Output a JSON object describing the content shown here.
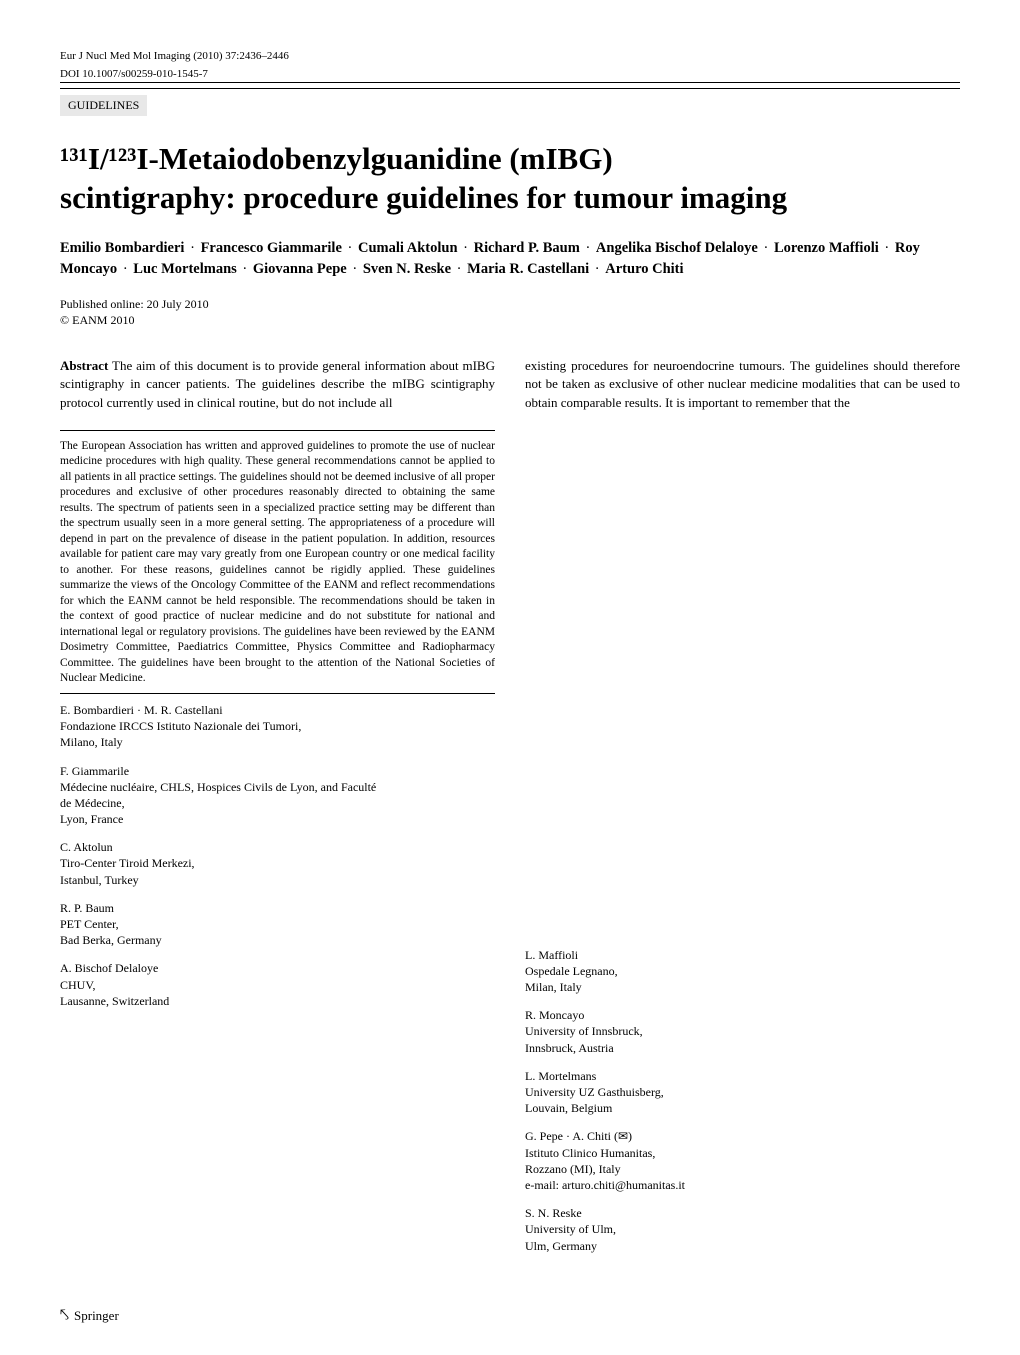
{
  "header": {
    "journal_ref": "Eur J Nucl Med Mol Imaging (2010) 37:2436–2446",
    "doi": "DOI 10.1007/s00259-010-1545-7"
  },
  "category": "GUIDELINES",
  "title_line1": "¹³¹I/¹²³I-Metaiodobenzylguanidine (mIBG)",
  "title_line2": "scintigraphy: procedure guidelines for tumour imaging",
  "authors": [
    "Emilio Bombardieri",
    "Francesco Giammarile",
    "Cumali Aktolun",
    "Richard P. Baum",
    "Angelika Bischof Delaloye",
    "Lorenzo Maffioli",
    "Roy Moncayo",
    "Luc Mortelmans",
    "Giovanna Pepe",
    "Sven N. Reske",
    "Maria R. Castellani",
    "Arturo Chiti"
  ],
  "pub": {
    "published": "Published online: 20 July 2010",
    "copyright": "© EANM 2010"
  },
  "abstract": {
    "label": "Abstract",
    "left": " The aim of this document is to provide general information about mIBG scintigraphy in cancer patients. The guidelines describe the mIBG scintigraphy protocol currently used in clinical routine, but do not include all",
    "right": "existing procedures for neuroendocrine tumours. The guidelines should therefore not be taken as exclusive of other nuclear medicine modalities that can be used to obtain comparable results. It is important to remember that the"
  },
  "footnote": "The European Association has written and approved guidelines to promote the use of nuclear medicine procedures with high quality. These general recommendations cannot be applied to all patients in all practice settings. The guidelines should not be deemed inclusive of all proper procedures and exclusive of other procedures reasonably directed to obtaining the same results. The spectrum of patients seen in a specialized practice setting may be different than the spectrum usually seen in a more general setting. The appropriateness of a procedure will depend in part on the prevalence of disease in the patient population. In addition, resources available for patient care may vary greatly from one European country or one medical facility to another. For these reasons, guidelines cannot be rigidly applied. These guidelines summarize the views of the Oncology Committee of the EANM and reflect recommendations for which the EANM cannot be held responsible. The recommendations should be taken in the context of good practice of nuclear medicine and do not substitute for national and international legal or regulatory provisions. The guidelines have been reviewed by the EANM Dosimetry Committee, Paediatrics Committee, Physics Committee and Radiopharmacy Committee. The guidelines have been brought to the attention of the National Societies of Nuclear Medicine.",
  "affil_left": [
    {
      "names": "E. Bombardieri · M. R. Castellani",
      "lines": [
        "Fondazione IRCCS Istituto Nazionale dei Tumori,",
        "Milano, Italy"
      ]
    },
    {
      "names": "F. Giammarile",
      "lines": [
        "Médecine nucléaire, CHLS, Hospices Civils de Lyon, and Faculté",
        "de Médecine,",
        "Lyon, France"
      ]
    },
    {
      "names": "C. Aktolun",
      "lines": [
        "Tiro-Center Tiroid Merkezi,",
        "Istanbul, Turkey"
      ]
    },
    {
      "names": "R. P. Baum",
      "lines": [
        "PET Center,",
        "Bad Berka, Germany"
      ]
    },
    {
      "names": "A. Bischof Delaloye",
      "lines": [
        "CHUV,",
        "Lausanne, Switzerland"
      ]
    }
  ],
  "affil_right": [
    {
      "names": "L. Maffioli",
      "lines": [
        "Ospedale Legnano,",
        "Milan, Italy"
      ]
    },
    {
      "names": "R. Moncayo",
      "lines": [
        "University of Innsbruck,",
        "Innsbruck, Austria"
      ]
    },
    {
      "names": "L. Mortelmans",
      "lines": [
        "University UZ Gasthuisberg,",
        "Louvain, Belgium"
      ]
    },
    {
      "names": "G. Pepe · A. Chiti (✉)",
      "lines": [
        "Istituto Clinico Humanitas,",
        "Rozzano (MI), Italy",
        "e-mail: arturo.chiti@humanitas.it"
      ]
    },
    {
      "names": "S. N. Reske",
      "lines": [
        "University of Ulm,",
        "Ulm, Germany"
      ]
    }
  ],
  "footer": {
    "publisher": "Springer"
  }
}
